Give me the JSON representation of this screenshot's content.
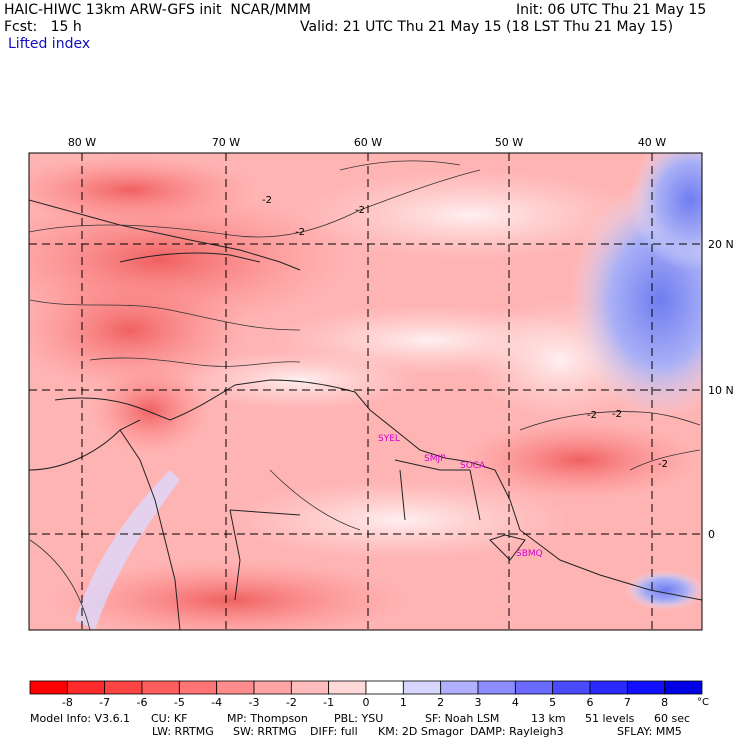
{
  "header": {
    "title": "HAIC-HIWC 13km ARW-GFS init  NCAR/MMM",
    "init": "Init: 06 UTC Thu 21 May 15",
    "fcst": "Fcst:   15 h",
    "valid": "Valid: 21 UTC Thu 21 May 15 (18 LST Thu 21 May 15)",
    "field": "Lifted index"
  },
  "map": {
    "lon_labels": [
      "80 W",
      "70 W",
      "60 W",
      "50 W",
      "40 W"
    ],
    "lat_labels": [
      "20 N",
      "10 N",
      "0"
    ],
    "contour_label": "-2",
    "stations": [
      "SYEL",
      "SMJP",
      "SOCA",
      "SBMQ"
    ]
  },
  "colorbar": {
    "labels": [
      "-8",
      "-7",
      "-6",
      "-5",
      "-4",
      "-3",
      "-2",
      "-1",
      "0",
      "1",
      "2",
      "3",
      "4",
      "5",
      "6",
      "7",
      "8"
    ],
    "unit": "°C",
    "colors": [
      "#ff0000",
      "#ff2a2a",
      "#ff4444",
      "#ff5e5e",
      "#ff7474",
      "#ff8c8c",
      "#ffa4a4",
      "#ffbcbc",
      "#ffd8d8",
      "#ffffff",
      "#d6d6ff",
      "#b0b0ff",
      "#8c8cff",
      "#6a6aff",
      "#4a4aff",
      "#2a2aff",
      "#1010ff",
      "#0000e6"
    ]
  },
  "footer": {
    "line1": [
      {
        "k": "model",
        "v": "Model Info: V3.6.1"
      },
      {
        "k": "cu",
        "v": "CU: KF"
      },
      {
        "k": "mp",
        "v": "MP: Thompson"
      },
      {
        "k": "pbl",
        "v": "PBL: YSU"
      },
      {
        "k": "sf",
        "v": "SF: Noah LSM"
      },
      {
        "k": "res",
        "v": "13 km"
      },
      {
        "k": "levels",
        "v": "51 levels"
      },
      {
        "k": "dt",
        "v": "60 sec"
      }
    ],
    "line2": [
      {
        "k": "lw",
        "v": "LW: RRTMG"
      },
      {
        "k": "sw",
        "v": "SW: RRTMG"
      },
      {
        "k": "diff",
        "v": "DIFF: full"
      },
      {
        "k": "km",
        "v": "KM: 2D Smagor"
      },
      {
        "k": "damp",
        "v": "DAMP: Rayleigh3"
      },
      {
        "k": "sflay",
        "v": "SFLAY: MM5"
      }
    ]
  }
}
